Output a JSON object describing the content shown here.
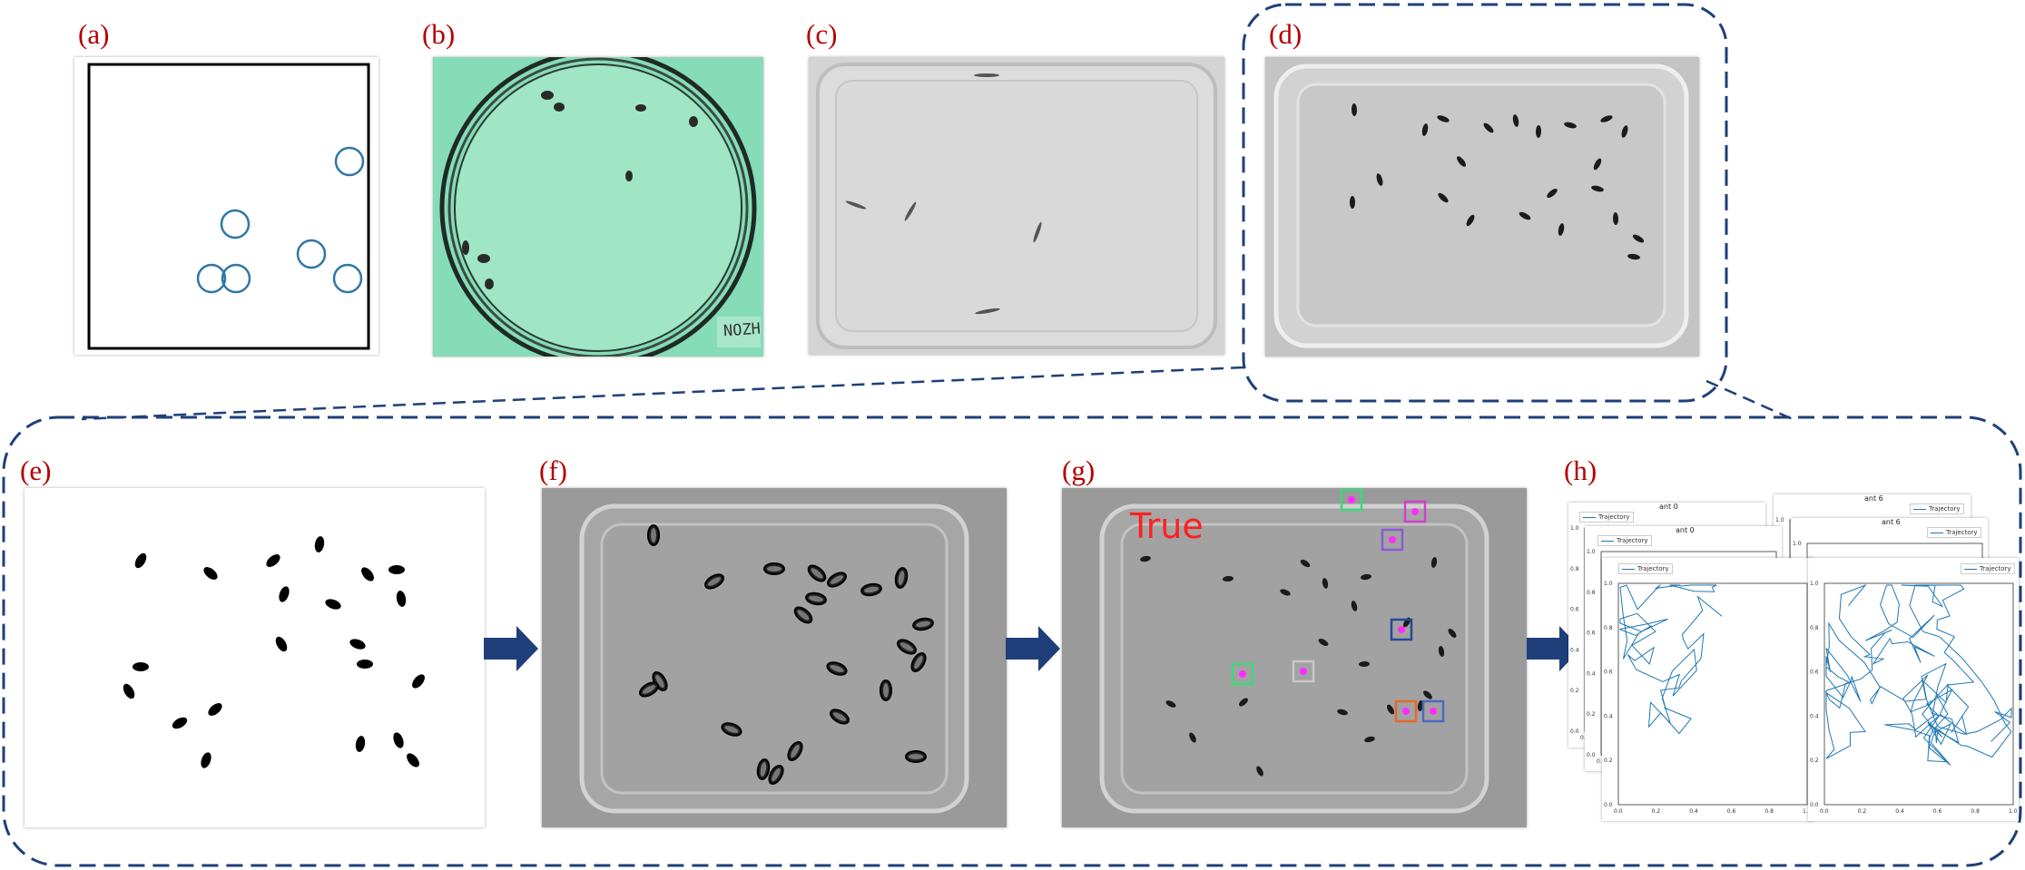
{
  "panel_labels": {
    "a": "(a)",
    "b": "(b)",
    "c": "(c)",
    "d": "(d)",
    "e": "(e)",
    "f": "(f)",
    "g": "(g)",
    "h": "(h)"
  },
  "dish_b_label": "NOZH",
  "panel_g_tag": "True",
  "plots": [
    {
      "title": "ant 0",
      "legend": "Trajectory"
    },
    {
      "title": "ant 6",
      "legend": "Trajectory"
    }
  ],
  "tick_labels_y": [
    "1.0",
    "0.8",
    "0.6",
    "0.4",
    "0.2",
    "0.0"
  ],
  "tick_labels_x": [
    "0.0",
    "0.2",
    "0.4",
    "0.6",
    "0.8",
    "1.0"
  ],
  "colors": {
    "label": "#b40000",
    "dashed_outline": "#1f3f7a",
    "arrow": "#1f3f7a",
    "trajectory": "#1f77b4",
    "circle": "#2f77a8"
  }
}
